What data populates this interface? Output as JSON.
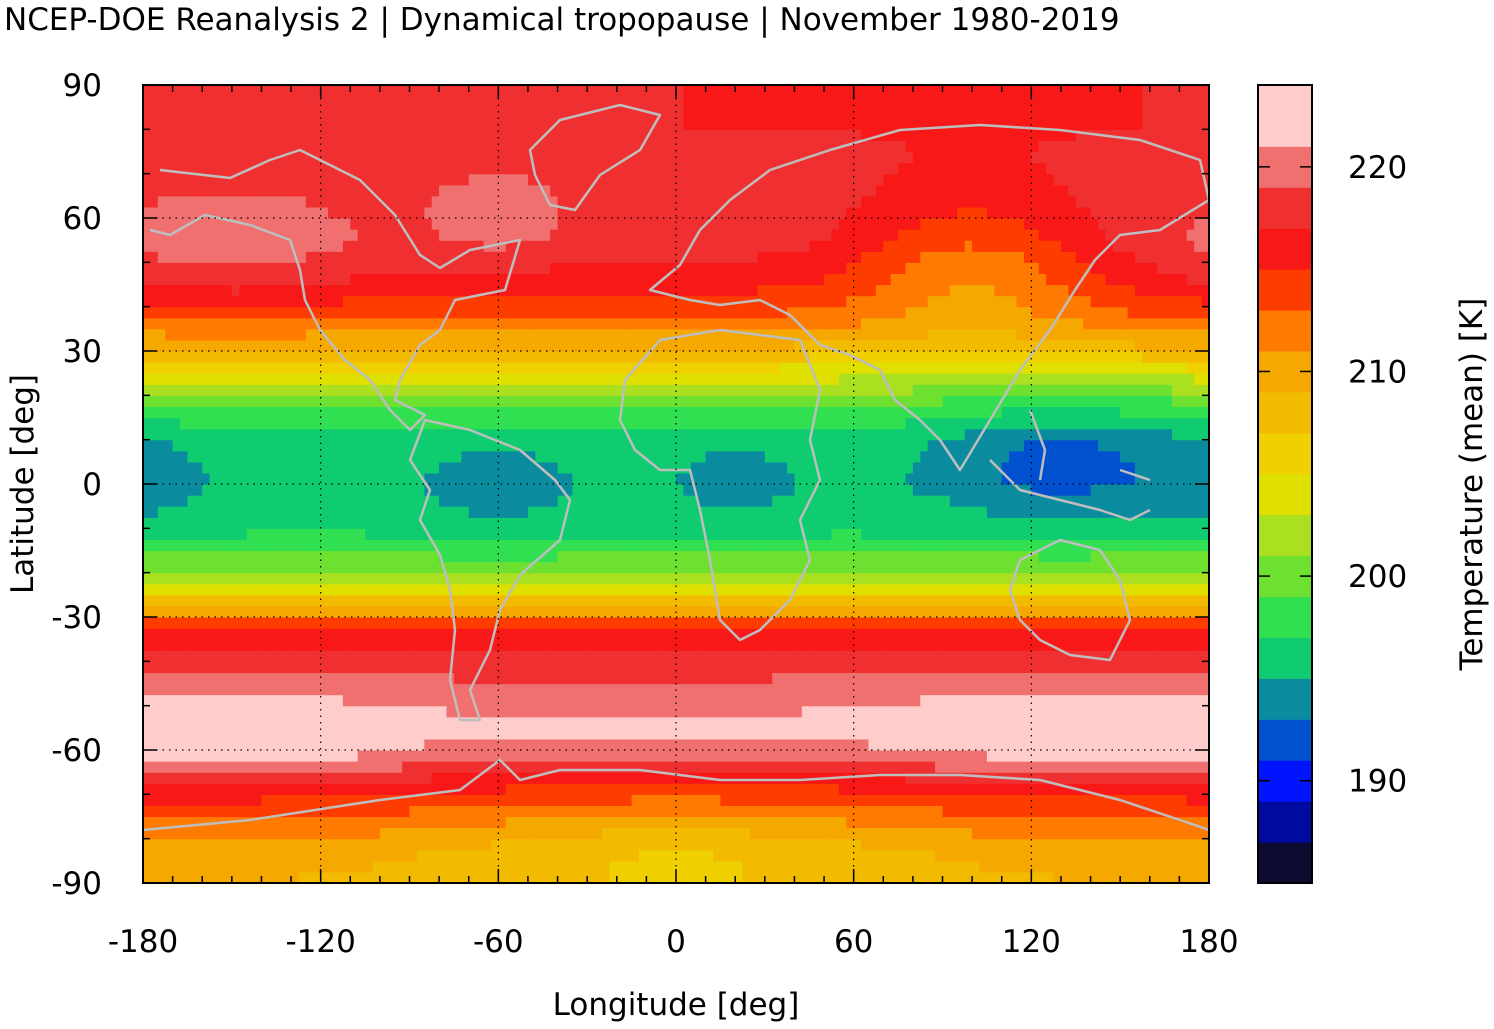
{
  "chart_data": {
    "type": "heatmap",
    "title": "NCEP-DOE Reanalysis 2 | Dynamical tropopause | November 1980-2019",
    "xlabel": "Longitude [deg]",
    "ylabel": "Latitude [deg]",
    "colorbar_label": "Temperature (mean) [K]",
    "xlim": [
      -180,
      180
    ],
    "ylim": [
      -90,
      90
    ],
    "x_ticks": [
      "-180",
      "-120",
      "-60",
      "0",
      "60",
      "120",
      "180"
    ],
    "y_ticks": [
      "90",
      "60",
      "30",
      "0",
      "-30",
      "-60",
      "-90"
    ],
    "colorbar_range": [
      185,
      224
    ],
    "colorbar_ticks": [
      "220",
      "210",
      "200",
      "190"
    ],
    "colorbar_tick_values": [
      220,
      210,
      200,
      190
    ],
    "grid": true,
    "coastline_color": "#bebebe",
    "color_levels": [
      {
        "from": 185,
        "to": 187,
        "color": "#0c0c30"
      },
      {
        "from": 187,
        "to": 189,
        "color": "#000aa0"
      },
      {
        "from": 189,
        "to": 191,
        "color": "#0014ff"
      },
      {
        "from": 191,
        "to": 193,
        "color": "#0050d0"
      },
      {
        "from": 193,
        "to": 195,
        "color": "#0a8c9e"
      },
      {
        "from": 195,
        "to": 197,
        "color": "#10cc70"
      },
      {
        "from": 197,
        "to": 199,
        "color": "#30e050"
      },
      {
        "from": 199,
        "to": 201,
        "color": "#6ee030"
      },
      {
        "from": 201,
        "to": 203,
        "color": "#aae020"
      },
      {
        "from": 203,
        "to": 205,
        "color": "#e0e000"
      },
      {
        "from": 205,
        "to": 207,
        "color": "#f0d000"
      },
      {
        "from": 207,
        "to": 209,
        "color": "#f2bb00"
      },
      {
        "from": 209,
        "to": 211,
        "color": "#f5a800"
      },
      {
        "from": 211,
        "to": 213,
        "color": "#ff7a00"
      },
      {
        "from": 213,
        "to": 215,
        "color": "#ff3c00"
      },
      {
        "from": 215,
        "to": 217,
        "color": "#f81818"
      },
      {
        "from": 217,
        "to": 219,
        "color": "#f03030"
      },
      {
        "from": 219,
        "to": 221,
        "color": "#f07070"
      },
      {
        "from": 221,
        "to": 224,
        "color": "#ffcccc"
      }
    ],
    "zonal_mean_profile": [
      {
        "lat": -90,
        "value": 209
      },
      {
        "lat": -83,
        "value": 210
      },
      {
        "lat": -75,
        "value": 213
      },
      {
        "lat": -68,
        "value": 216
      },
      {
        "lat": -62,
        "value": 219.5
      },
      {
        "lat": -55,
        "value": 221.5
      },
      {
        "lat": -48,
        "value": 220
      },
      {
        "lat": -40,
        "value": 218
      },
      {
        "lat": -34,
        "value": 216
      },
      {
        "lat": -29,
        "value": 211
      },
      {
        "lat": -24,
        "value": 205
      },
      {
        "lat": -18,
        "value": 200
      },
      {
        "lat": -10,
        "value": 196.5
      },
      {
        "lat": 0,
        "value": 195.5
      },
      {
        "lat": 10,
        "value": 196
      },
      {
        "lat": 18,
        "value": 199
      },
      {
        "lat": 25,
        "value": 204
      },
      {
        "lat": 31,
        "value": 209
      },
      {
        "lat": 38,
        "value": 213
      },
      {
        "lat": 46,
        "value": 216
      },
      {
        "lat": 55,
        "value": 218
      },
      {
        "lat": 65,
        "value": 218
      },
      {
        "lat": 80,
        "value": 217
      },
      {
        "lat": 90,
        "value": 217
      }
    ],
    "anomalies": [
      {
        "lon": 130,
        "lat": 5,
        "lon_radius": 40,
        "lat_radius": 13,
        "delta": -3.5
      },
      {
        "lon": -60,
        "lat": -2,
        "lon_radius": 26,
        "lat_radius": 13,
        "delta": -1.5
      },
      {
        "lon": 20,
        "lat": 0,
        "lon_radius": 20,
        "lat_radius": 10,
        "delta": -1.5
      },
      {
        "lon": -180,
        "lat": 0,
        "lon_radius": 22,
        "lat_radius": 11,
        "delta": -1.3
      },
      {
        "lon": 100,
        "lat": 50,
        "lon_radius": 40,
        "lat_radius": 16,
        "delta": -5
      },
      {
        "lon": -150,
        "lat": 52,
        "lon_radius": 45,
        "lat_radius": 15,
        "delta": 2.5
      },
      {
        "lon": -60,
        "lat": 62,
        "lon_radius": 25,
        "lat_radius": 12,
        "delta": 2
      },
      {
        "lon": -150,
        "lat": -58,
        "lon_radius": 55,
        "lat_radius": 10,
        "delta": 2.5
      },
      {
        "lon": 140,
        "lat": -55,
        "lon_radius": 70,
        "lat_radius": 10,
        "delta": 2.5
      },
      {
        "lon": 0,
        "lat": -82,
        "lon_radius": 80,
        "lat_radius": 14,
        "delta": -3
      }
    ]
  }
}
